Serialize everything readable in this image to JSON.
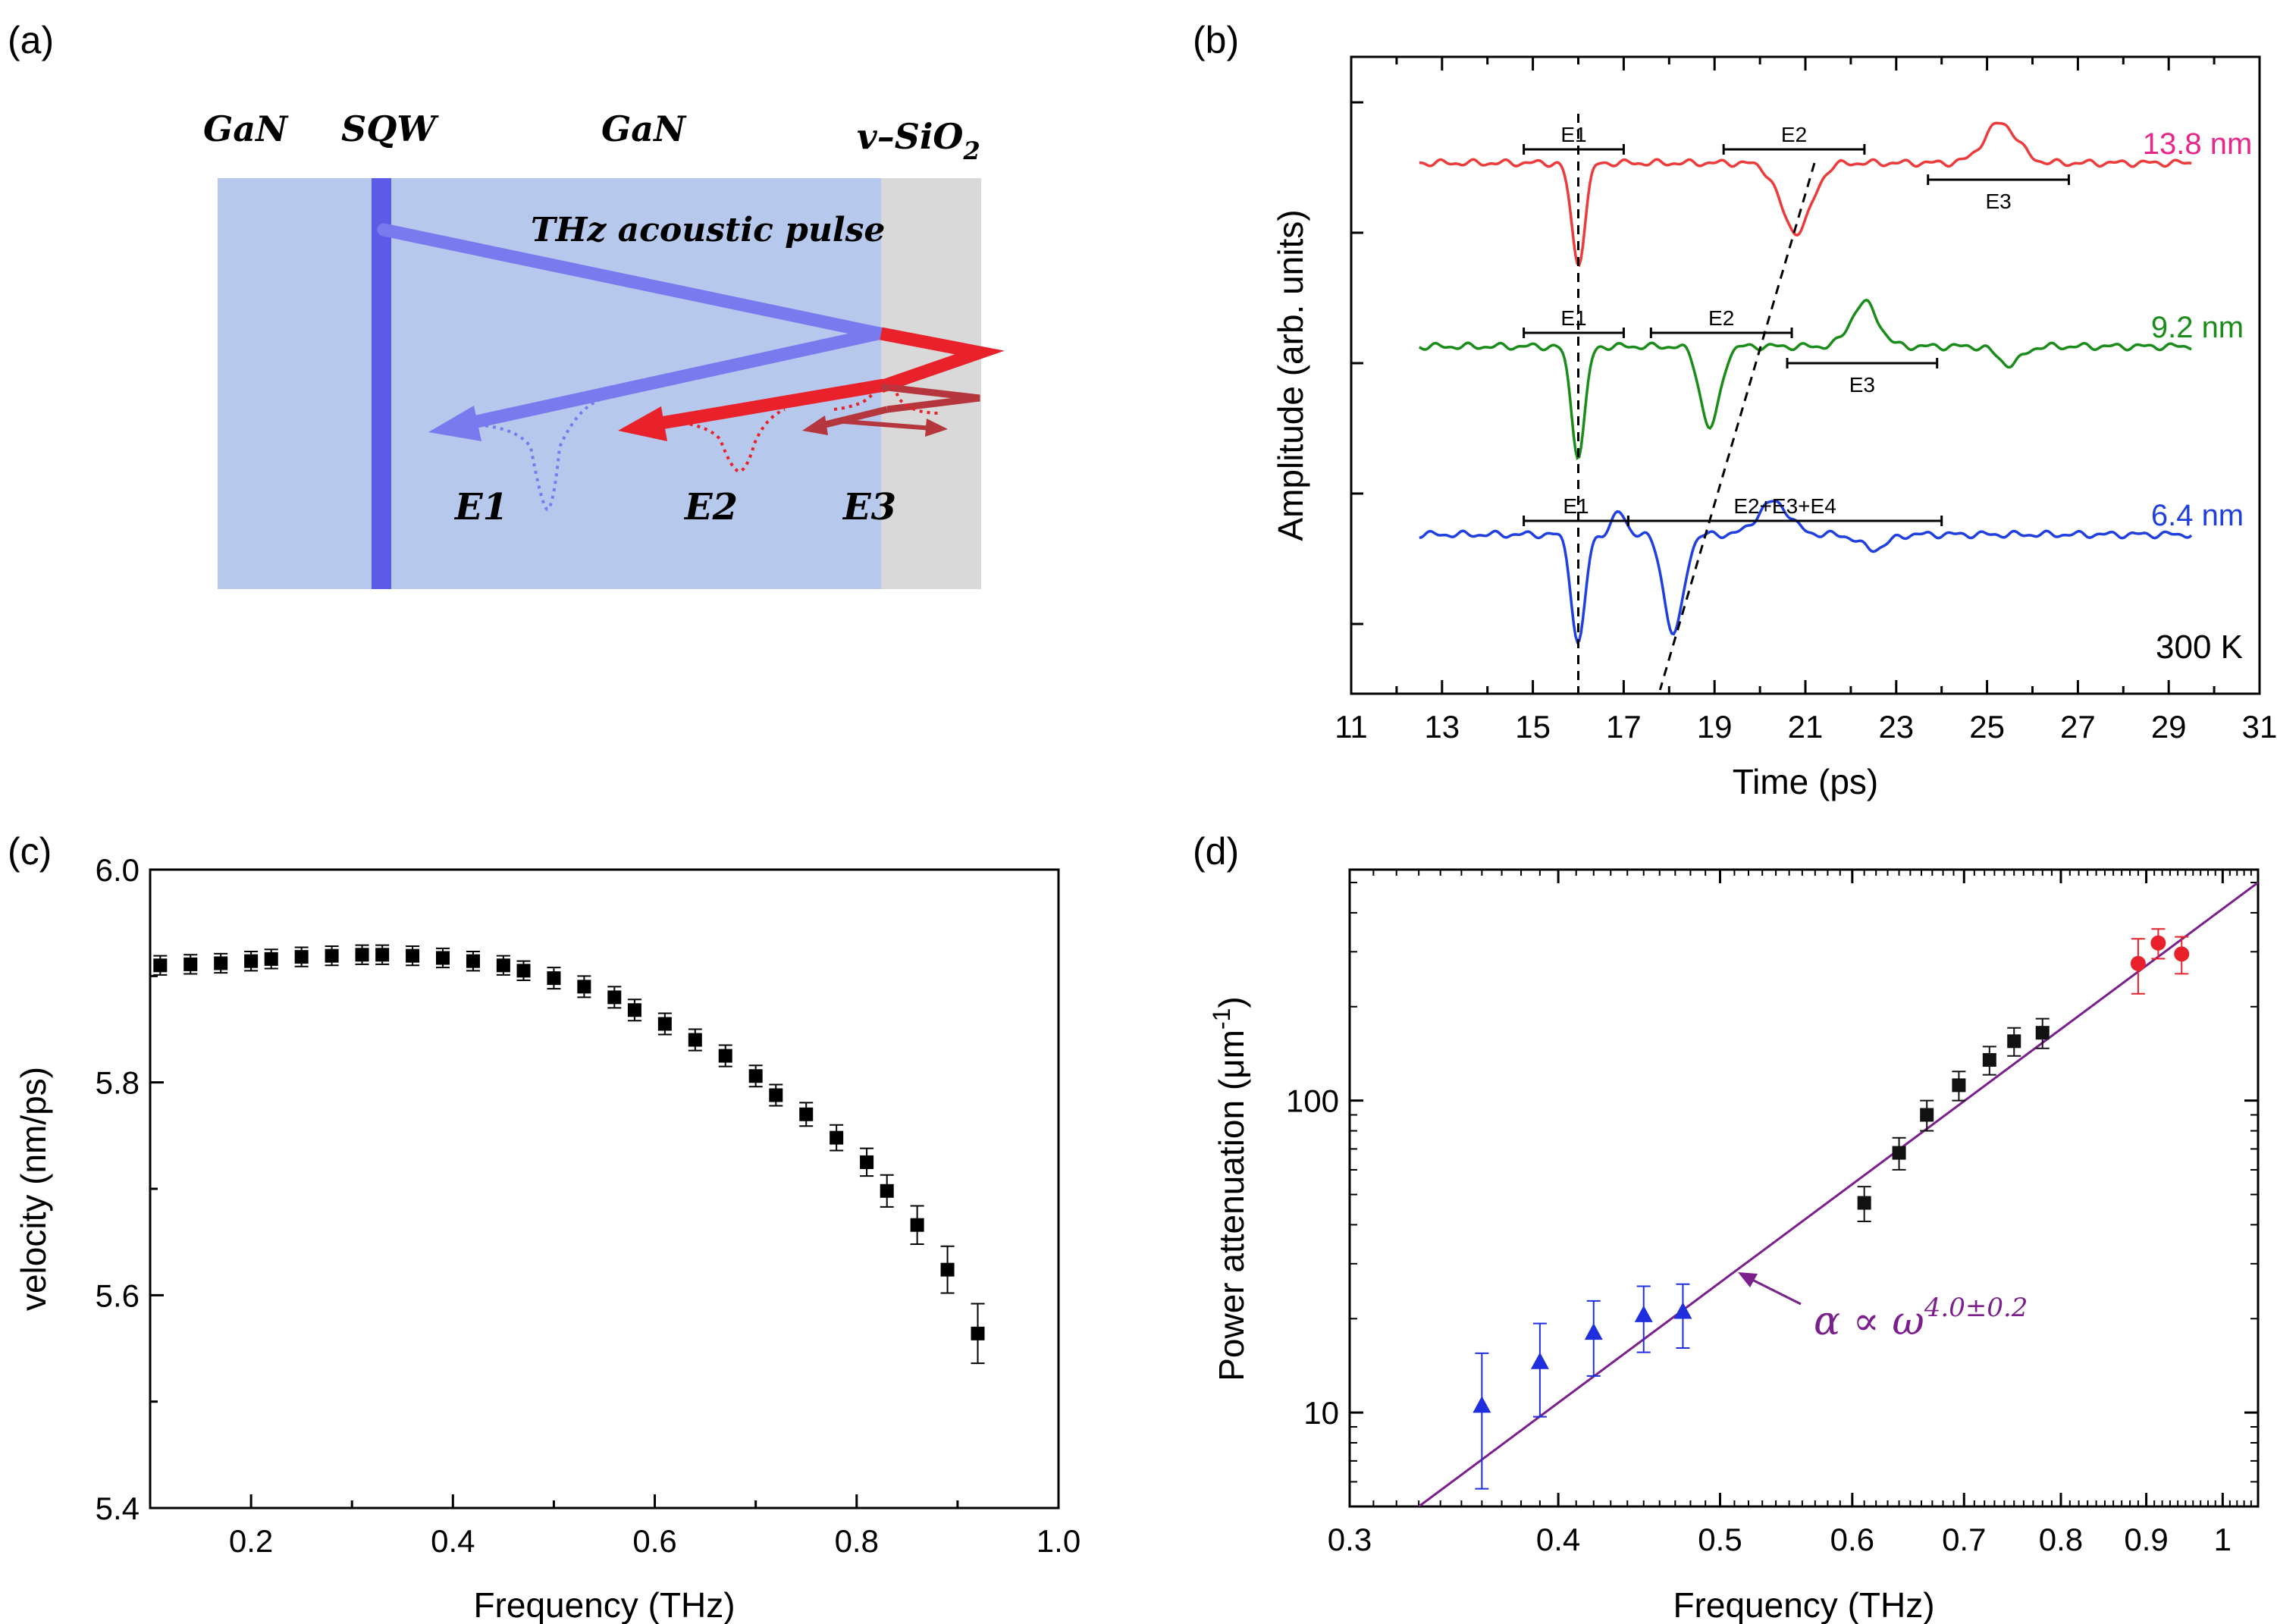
{
  "figure": {
    "panel_labels": [
      "(a)",
      "(b)",
      "(c)",
      "(d)"
    ]
  },
  "schematic": {
    "layer_labels": [
      "GaN",
      "SQW",
      "GaN",
      "v–SiO"
    ],
    "sio_subscript": "2",
    "pulse_label": "THz acoustic pulse",
    "echo_labels": [
      "E1",
      "E2",
      "E3"
    ],
    "colors": {
      "gan": "#b6c9ec",
      "sio2": "#d9d9d9",
      "sqw": "#5b5be8",
      "pulse": "#7a7aef",
      "echo_red": "#e8212a",
      "echo_dark": "#b5373d"
    }
  },
  "chart_data": [
    {
      "panel": "b",
      "type": "line",
      "title": "",
      "xlabel": "Time (ps)",
      "ylabel": "Amplitude (arb. units)",
      "xlim": [
        11,
        31
      ],
      "xticks": [
        11,
        13,
        15,
        17,
        19,
        21,
        23,
        25,
        27,
        29,
        31
      ],
      "temperature_label": "300 K",
      "series": [
        {
          "name": "13.8 nm",
          "color": "#ee3a3a",
          "label_color": "#e8268a",
          "baseline": 0.0,
          "dips": [
            [
              16.0,
              -0.55,
              0.35
            ],
            [
              20.8,
              -0.38,
              0.8
            ]
          ],
          "peaks": [
            [
              25.3,
              0.22,
              0.85
            ]
          ],
          "brackets": [
            {
              "label": "E1",
              "from": 14.8,
              "to": 17.0,
              "side": "above"
            },
            {
              "label": "E2",
              "from": 19.2,
              "to": 22.3,
              "side": "above"
            },
            {
              "label": "E3",
              "from": 23.7,
              "to": 26.8,
              "side": "below"
            }
          ]
        },
        {
          "name": "9.2 nm",
          "color": "#1a8c1a",
          "label_color": "#1a8c1a",
          "baseline": -1.0,
          "dips": [
            [
              16.0,
              -0.6,
              0.35
            ],
            [
              18.9,
              -0.45,
              0.5
            ]
          ],
          "peaks": [
            [
              22.3,
              0.24,
              0.7
            ],
            [
              25.5,
              -0.1,
              0.6
            ]
          ],
          "brackets": [
            {
              "label": "E1",
              "from": 14.8,
              "to": 17.0,
              "side": "above"
            },
            {
              "label": "E2",
              "from": 17.6,
              "to": 20.7,
              "side": "above"
            },
            {
              "label": "E3",
              "from": 20.6,
              "to": 23.9,
              "side": "below"
            }
          ]
        },
        {
          "name": "6.4 nm",
          "color": "#1f3fe0",
          "label_color": "#1f3fe0",
          "baseline": -2.0,
          "dips": [
            [
              16.0,
              -0.6,
              0.35
            ],
            [
              18.1,
              -0.55,
              0.5
            ]
          ],
          "peaks": [
            [
              16.9,
              0.12,
              0.35
            ],
            [
              20.3,
              0.18,
              0.8
            ],
            [
              22.5,
              -0.08,
              0.7
            ]
          ],
          "brackets": [
            {
              "label": "E1",
              "from": 14.8,
              "to": 17.1,
              "side": "above"
            },
            {
              "label": "E2+E3+E4",
              "from": 17.1,
              "to": 24.0,
              "side": "above"
            }
          ]
        }
      ]
    },
    {
      "panel": "c",
      "type": "scatter",
      "title": "",
      "xlabel": "Frequency (THz)",
      "ylabel": "velocity (nm/ps)",
      "xlim": [
        0.1,
        1.0
      ],
      "ylim": [
        5.4,
        6.0
      ],
      "xticks": [
        "0.2",
        "0.4",
        "0.6",
        "0.8",
        "1.0"
      ],
      "yticks": [
        "5.4",
        "5.6",
        "5.8",
        "6.0"
      ],
      "x": [
        0.11,
        0.14,
        0.17,
        0.2,
        0.22,
        0.25,
        0.28,
        0.31,
        0.33,
        0.36,
        0.39,
        0.42,
        0.45,
        0.47,
        0.5,
        0.53,
        0.56,
        0.58,
        0.61,
        0.64,
        0.67,
        0.7,
        0.72,
        0.75,
        0.78,
        0.81,
        0.83,
        0.86,
        0.89,
        0.92
      ],
      "y": [
        5.91,
        5.911,
        5.912,
        5.914,
        5.916,
        5.918,
        5.919,
        5.92,
        5.92,
        5.919,
        5.917,
        5.914,
        5.91,
        5.905,
        5.898,
        5.89,
        5.88,
        5.868,
        5.855,
        5.84,
        5.825,
        5.806,
        5.788,
        5.77,
        5.748,
        5.725,
        5.698,
        5.666,
        5.624,
        5.564
      ],
      "err": [
        0.009,
        0.009,
        0.009,
        0.009,
        0.009,
        0.009,
        0.009,
        0.009,
        0.009,
        0.009,
        0.009,
        0.009,
        0.009,
        0.009,
        0.01,
        0.01,
        0.01,
        0.01,
        0.01,
        0.01,
        0.01,
        0.01,
        0.01,
        0.011,
        0.012,
        0.013,
        0.015,
        0.018,
        0.022,
        0.028
      ]
    },
    {
      "panel": "d",
      "type": "scatter",
      "title": "",
      "xlabel": "Frequency (THz)",
      "ylabel": "Power attenuation (μm",
      "ylabel_sup": "-1",
      "ylabel_close": ")",
      "xscale": "log",
      "yscale": "log",
      "xlim": [
        0.3,
        1.05
      ],
      "ylim": [
        5,
        550
      ],
      "xticks": [
        "0.3",
        "0.4",
        "0.5",
        "0.6",
        "0.7",
        "0.8",
        "0.9",
        "1"
      ],
      "yticks": [
        "10",
        "100"
      ],
      "fit_label": "α ∝ ω",
      "fit_exponent": "4.0±0.2",
      "fit_color": "#7a1f8c",
      "fit": {
        "exponent": 4.0,
        "x1": 0.33,
        "y1": 5.0,
        "x2": 1.05,
        "y2": 500.0
      },
      "series": [
        {
          "name": "blue triangles",
          "color": "#1f2fe0",
          "marker": "triangle",
          "x": [
            0.36,
            0.39,
            0.42,
            0.45,
            0.475
          ],
          "y": [
            10.5,
            14.5,
            18.0,
            20.5,
            21.0
          ],
          "err_low": [
            4.8,
            4.8,
            4.9,
            4.9,
            4.9
          ],
          "err_high": [
            5.0,
            4.8,
            4.8,
            4.9,
            4.8
          ]
        },
        {
          "name": "black squares",
          "color": "#111111",
          "marker": "square",
          "x": [
            0.61,
            0.64,
            0.665,
            0.695,
            0.725,
            0.75,
            0.78
          ],
          "y": [
            47,
            68,
            90,
            112,
            135,
            155,
            165
          ],
          "err_low": [
            6,
            8,
            10,
            12,
            14,
            16,
            18
          ],
          "err_high": [
            6,
            8,
            10,
            12,
            14,
            16,
            18
          ]
        },
        {
          "name": "red circles",
          "color": "#e8212a",
          "marker": "circle",
          "x": [
            0.89,
            0.915,
            0.945
          ],
          "y": [
            275,
            320,
            295
          ],
          "err_low": [
            55,
            35,
            40
          ],
          "err_high": [
            55,
            35,
            40
          ]
        }
      ]
    }
  ]
}
